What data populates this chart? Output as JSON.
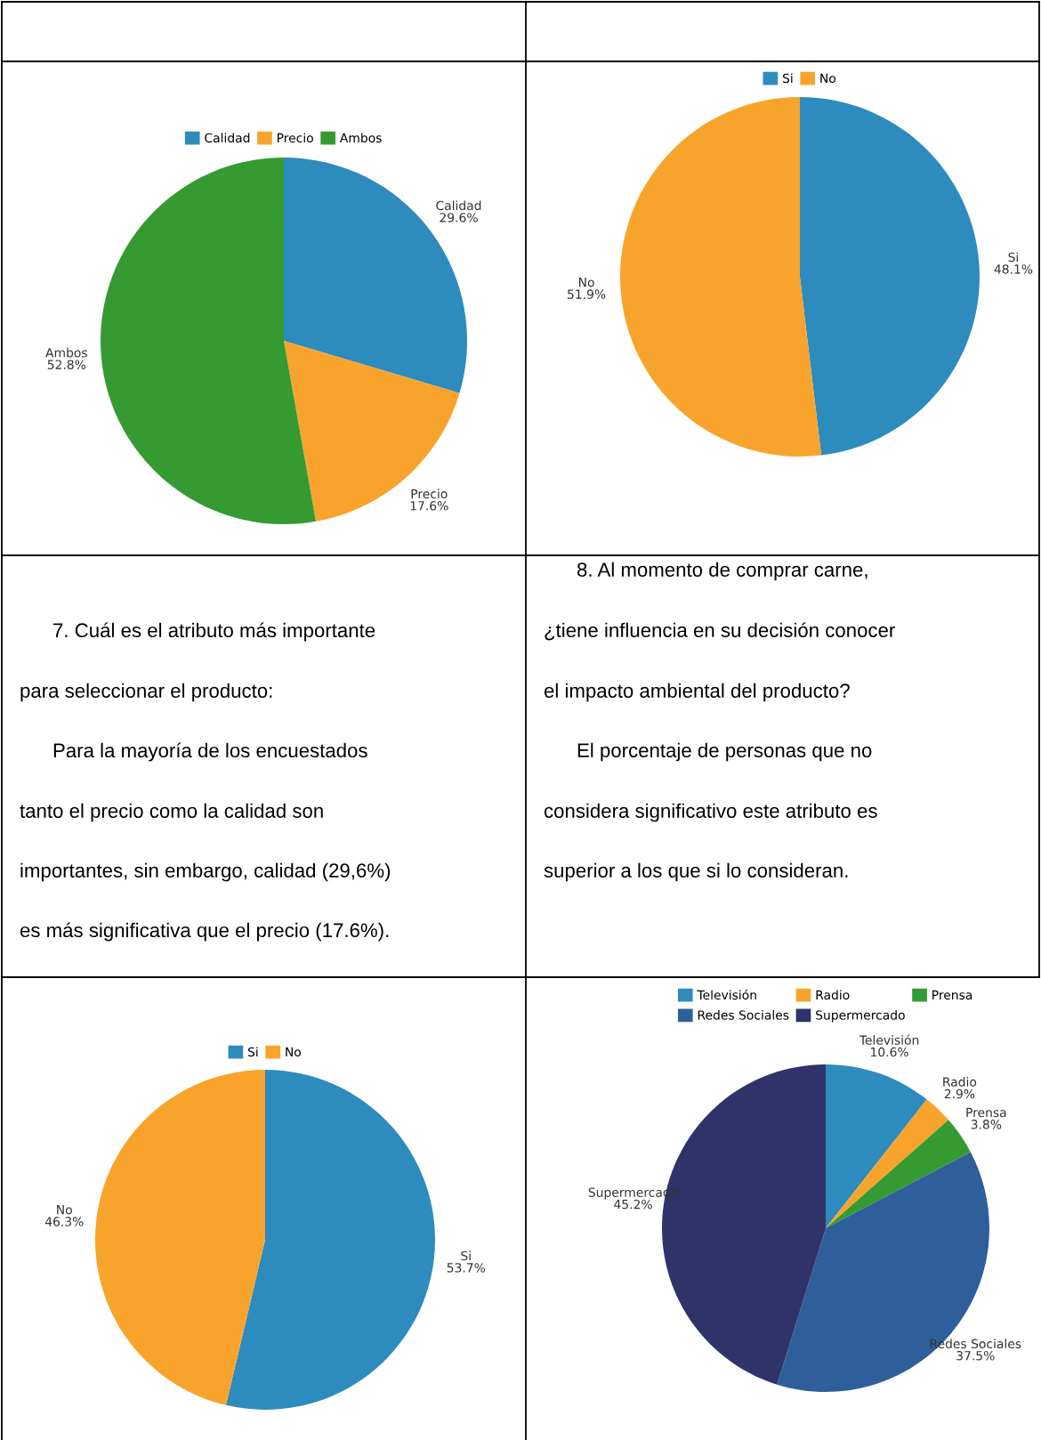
{
  "chart_data": [
    {
      "type": "pie",
      "categories": [
        "Calidad",
        "Precio",
        "Ambos"
      ],
      "values": [
        29.6,
        17.6,
        52.8
      ],
      "value_labels": [
        "29.6%",
        "17.6%",
        "52.8%"
      ],
      "colors": [
        "#2e8bbd",
        "#f8a42c",
        "#369a32"
      ],
      "legend": "top"
    },
    {
      "type": "pie",
      "categories": [
        "Si",
        "No"
      ],
      "values": [
        48.1,
        51.9
      ],
      "value_labels": [
        "48.1%",
        "51.9%"
      ],
      "colors": [
        "#2e8bbd",
        "#f8a42c"
      ],
      "legend": "top"
    },
    {
      "type": "other",
      "annotations": [
        "7. Cuál es el atributo más importante",
        "para seleccionar el producto:",
        "Para la mayoría de los encuestados",
        "tanto el precio como la calidad son",
        "importantes, sin embargo, calidad (29,6%)",
        "es más significativa que el precio (17.6%)."
      ]
    },
    {
      "type": "other",
      "annotations": [
        "8. Al momento de comprar carne,",
        "¿tiene influencia en su decisión conocer",
        "el impacto ambiental del producto?",
        "El porcentaje de personas que no",
        "considera significativo este atributo es",
        "superior a los que si lo consideran."
      ]
    },
    {
      "type": "pie",
      "categories": [
        "Si",
        "No"
      ],
      "values": [
        53.7,
        46.3
      ],
      "value_labels": [
        "53.7%",
        "46.3%"
      ],
      "colors": [
        "#2e8bbd",
        "#f8a42c"
      ],
      "legend": "top"
    },
    {
      "type": "pie",
      "categories": [
        "Televisión",
        "Radio",
        "Prensa",
        "Redes Sociales",
        "Supermercado"
      ],
      "values": [
        10.6,
        2.9,
        3.8,
        37.5,
        45.2
      ],
      "value_labels": [
        "10.6%",
        "2.9%",
        "3.8%",
        "37.5%",
        "45.2%"
      ],
      "colors": [
        "#2e8bbd",
        "#f8a42c",
        "#369a32",
        "#2e5f9a",
        "#2f3369"
      ],
      "legend": "top"
    }
  ]
}
